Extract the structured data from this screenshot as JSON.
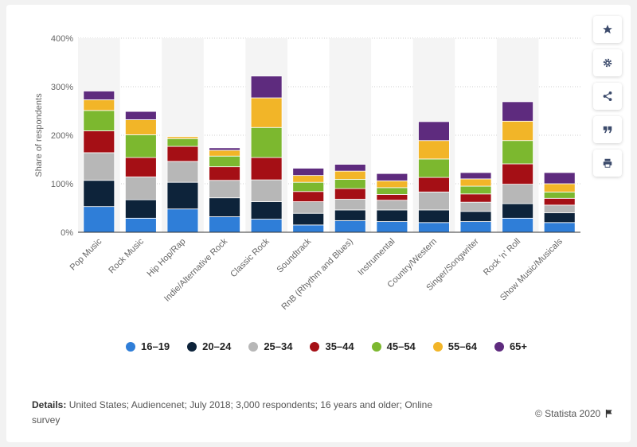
{
  "chart_data": {
    "type": "bar",
    "stacked": true,
    "ylabel": "Share of respondents",
    "ylim": [
      0,
      400
    ],
    "yticks": [
      "0%",
      "100%",
      "200%",
      "300%",
      "400%"
    ],
    "grid": true,
    "legend_position": "bottom",
    "categories": [
      "Pop Music",
      "Rock Music",
      "Hip Hop/Rap",
      "Indie/Alternative Rock",
      "Classic Rock",
      "Soundtrack",
      "RnB (Rhythm and Blues)",
      "Instrumental",
      "Country/Western",
      "Singer/Songwriter",
      "Rock 'n' Roll",
      "Show Music/Musicals"
    ],
    "series": [
      {
        "name": "16–19",
        "color": "#2f7ed8",
        "values": [
          53,
          29,
          48,
          32,
          27,
          15,
          24,
          22,
          20,
          22,
          29,
          20
        ]
      },
      {
        "name": "20–24",
        "color": "#0d233a",
        "values": [
          54,
          38,
          55,
          39,
          36,
          24,
          22,
          24,
          26,
          21,
          30,
          20
        ]
      },
      {
        "name": "25–34",
        "color": "#b7b7b7",
        "values": [
          57,
          47,
          43,
          36,
          45,
          24,
          22,
          20,
          37,
          19,
          40,
          16
        ]
      },
      {
        "name": "35–44",
        "color": "#a50f15",
        "values": [
          45,
          40,
          31,
          28,
          46,
          21,
          22,
          12,
          30,
          17,
          42,
          14
        ]
      },
      {
        "name": "45–54",
        "color": "#7cb82f",
        "values": [
          42,
          47,
          16,
          22,
          62,
          19,
          19,
          14,
          38,
          16,
          48,
          13
        ]
      },
      {
        "name": "55–64",
        "color": "#f2b528",
        "values": [
          22,
          31,
          4,
          12,
          61,
          14,
          17,
          14,
          38,
          15,
          40,
          17
        ]
      },
      {
        "name": "65+",
        "color": "#5e2b7e",
        "values": [
          18,
          17,
          0,
          5,
          45,
          15,
          14,
          15,
          39,
          13,
          40,
          23
        ]
      }
    ]
  },
  "details": {
    "label": "Details:",
    "text": "United States; Audiencenet; July 2018; 3,000 respondents; 16 years and older; Online survey"
  },
  "credit": "© Statista 2020",
  "sidebar": [
    {
      "icon": "star-icon"
    },
    {
      "icon": "gear-icon"
    },
    {
      "icon": "share-icon"
    },
    {
      "icon": "quote-icon"
    },
    {
      "icon": "print-icon"
    }
  ]
}
